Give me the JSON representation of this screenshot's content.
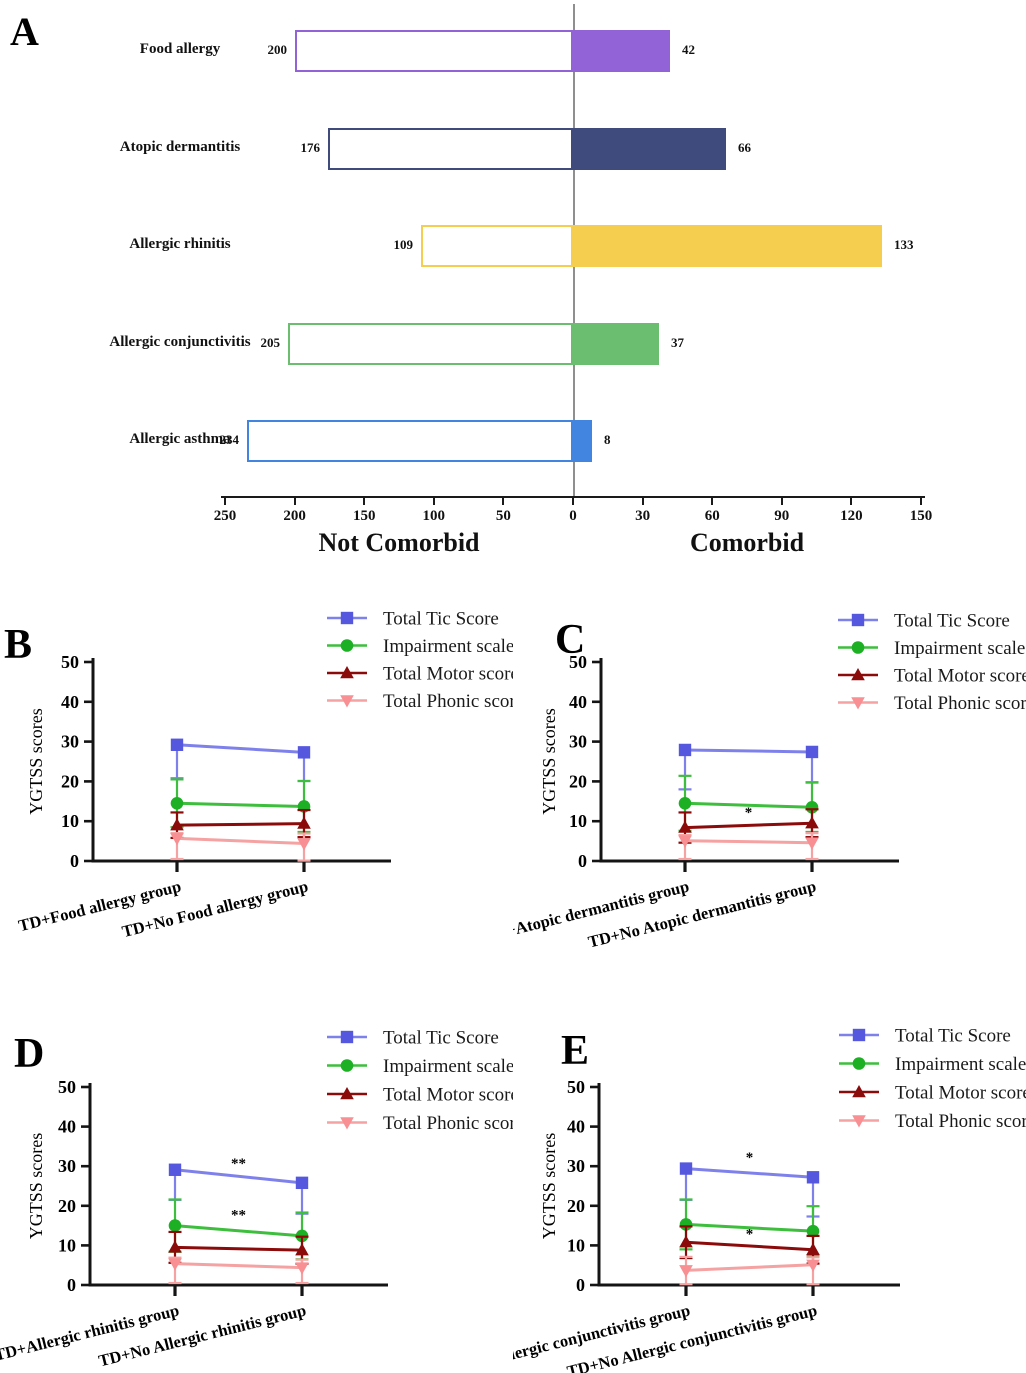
{
  "figure_title": "",
  "panel_letters": [
    "A",
    "B",
    "C",
    "D",
    "E"
  ],
  "line_series_defs": [
    {
      "name": "Total Tic Score",
      "marker": "square",
      "marker_color": "#5557DF",
      "line_color": "#7F81EB"
    },
    {
      "name": "Impairment scale score",
      "marker": "circle",
      "marker_color": "#1DB024",
      "line_color": "#3DBE3D"
    },
    {
      "name": "Total  Motor score",
      "marker": "triangle-up",
      "marker_color": "#8B0B0B",
      "line_color": "#8B0B0B"
    },
    {
      "name": "Total Phonic score",
      "marker": "triangle-down",
      "marker_color": "#F78F93",
      "line_color": "#F5A2A2"
    }
  ],
  "chart_data": [
    {
      "panel": "A",
      "type": "bar",
      "orientation": "diverging-horizontal",
      "categories": [
        "Food allergy",
        "Atopic dermantitis",
        "Allergic rhinitis",
        "Allergic conjunctivitis",
        "Allergic asthma"
      ],
      "series": [
        {
          "name": "Not Comorbid",
          "side": "left",
          "style": "outline",
          "values": [
            200,
            176,
            109,
            205,
            234
          ]
        },
        {
          "name": "Comorbid",
          "side": "right",
          "style": "filled",
          "values": [
            42,
            66,
            133,
            37,
            8
          ]
        }
      ],
      "category_colors": [
        "#9263D6",
        "#3F4B7D",
        "#F5CE50",
        "#6BBE6F",
        "#4285E0"
      ],
      "axis": {
        "left_ticks": [
          250,
          200,
          150,
          100,
          50
        ],
        "center_tick": 0,
        "right_ticks": [
          30,
          60,
          90,
          120,
          150
        ],
        "left_max": 250,
        "right_max": 150,
        "left_label": "Not Comorbid",
        "right_label": "Comorbid"
      },
      "gridlines": false
    },
    {
      "panel": "B",
      "type": "line",
      "title": "",
      "ylabel": "YGTSS scores",
      "ylim": [
        0,
        50
      ],
      "yticks": [
        0,
        10,
        20,
        30,
        40,
        50
      ],
      "categories": [
        "TD+Food allergy group",
        "TD+No Food allergy group"
      ],
      "series": [
        {
          "values": [
            29.2,
            27.3
          ],
          "err_up": [
            0,
            0
          ],
          "err_down": [
            8.4,
            7.2
          ]
        },
        {
          "values": [
            14.5,
            13.7
          ],
          "err_up": [
            6.0,
            6.4
          ],
          "err_down": [
            6.0,
            6.4
          ]
        },
        {
          "values": [
            9.0,
            9.4
          ],
          "err_up": [
            3.2,
            3.4
          ],
          "err_down": [
            3.2,
            3.4
          ]
        },
        {
          "values": [
            5.7,
            4.4
          ],
          "err_up": [
            1.3,
            2.5
          ],
          "err_down": [
            5.2,
            4.3
          ]
        }
      ],
      "annotations": [],
      "legend_position": "top-right"
    },
    {
      "panel": "C",
      "type": "line",
      "title": "",
      "ylabel": "YGTSS scores",
      "ylim": [
        0,
        50
      ],
      "yticks": [
        0,
        10,
        20,
        30,
        40,
        50
      ],
      "categories": [
        "TD+Atopic dermantitis group",
        "TD+No Atopic dermantitis group"
      ],
      "series": [
        {
          "values": [
            27.9,
            27.4
          ],
          "err_up": [
            0,
            0
          ],
          "err_down": [
            9.9,
            7.6
          ]
        },
        {
          "values": [
            14.5,
            13.5
          ],
          "err_up": [
            6.9,
            6.2
          ],
          "err_down": [
            6.9,
            6.2
          ]
        },
        {
          "values": [
            8.4,
            9.5
          ],
          "err_up": [
            3.8,
            3.5
          ],
          "err_down": [
            3.8,
            3.5
          ]
        },
        {
          "values": [
            5.1,
            4.6
          ],
          "err_up": [
            1.4,
            2.4
          ],
          "err_down": [
            4.6,
            4.1
          ]
        }
      ],
      "annotations": [
        {
          "text": "*",
          "x": "mid",
          "y": 11.0
        }
      ],
      "legend_position": "top-right"
    },
    {
      "panel": "D",
      "type": "line",
      "title": "",
      "ylabel": "YGTSS scores",
      "ylim": [
        0,
        50
      ],
      "yticks": [
        0,
        10,
        20,
        30,
        40,
        50
      ],
      "categories": [
        "TD+Allergic rhinitis group",
        "TD+No Allergic rhinitis group"
      ],
      "series": [
        {
          "values": [
            29.1,
            25.8
          ],
          "err_up": [
            0,
            0
          ],
          "err_down": [
            7.6,
            7.8
          ]
        },
        {
          "values": [
            15.0,
            12.4
          ],
          "err_up": [
            6.6,
            5.9
          ],
          "err_down": [
            6.6,
            5.9
          ]
        },
        {
          "values": [
            9.5,
            8.8
          ],
          "err_up": [
            3.9,
            3.4
          ],
          "err_down": [
            3.9,
            3.4
          ]
        },
        {
          "values": [
            5.4,
            4.4
          ],
          "err_up": [
            1.5,
            2.0
          ],
          "err_down": [
            4.9,
            3.9
          ]
        }
      ],
      "annotations": [
        {
          "text": "**",
          "x": "mid",
          "y": 29.6
        },
        {
          "text": "**",
          "x": "mid",
          "y": 16.6
        }
      ],
      "legend_position": "top-right"
    },
    {
      "panel": "E",
      "type": "line",
      "title": "",
      "ylabel": "YGTSS scores",
      "ylim": [
        0,
        50
      ],
      "yticks": [
        0,
        10,
        20,
        30,
        40,
        50
      ],
      "categories": [
        "TD+Allergic conjunctivitis group",
        "TD+No Allergic conjunctivitis group"
      ],
      "series": [
        {
          "values": [
            29.4,
            27.2
          ],
          "err_up": [
            0,
            0
          ],
          "err_down": [
            7.9,
            9.9
          ]
        },
        {
          "values": [
            15.3,
            13.6
          ],
          "err_up": [
            6.3,
            6.3
          ],
          "err_down": [
            6.3,
            6.3
          ]
        },
        {
          "values": [
            10.8,
            8.9
          ],
          "err_up": [
            4.0,
            3.5
          ],
          "err_down": [
            4.0,
            3.5
          ]
        },
        {
          "values": [
            3.7,
            5.1
          ],
          "err_up": [
            3.4,
            1.9
          ],
          "err_down": [
            3.5,
            4.9
          ]
        }
      ],
      "annotations": [
        {
          "text": "*",
          "x": "mid",
          "y": 31.0
        },
        {
          "text": "*",
          "x": "mid",
          "y": 11.8
        }
      ],
      "legend_position": "top-right"
    }
  ],
  "colors": {
    "axis": "#1a1a1a",
    "center_line": "#8f8f8f",
    "food_allergy": "#9263D6",
    "atopic_dermantitis": "#3F4B7D",
    "allergic_rhinitis": "#F5CE50",
    "allergic_conjunctivitis": "#6BBE6F",
    "allergic_asthma": "#4285E0"
  }
}
